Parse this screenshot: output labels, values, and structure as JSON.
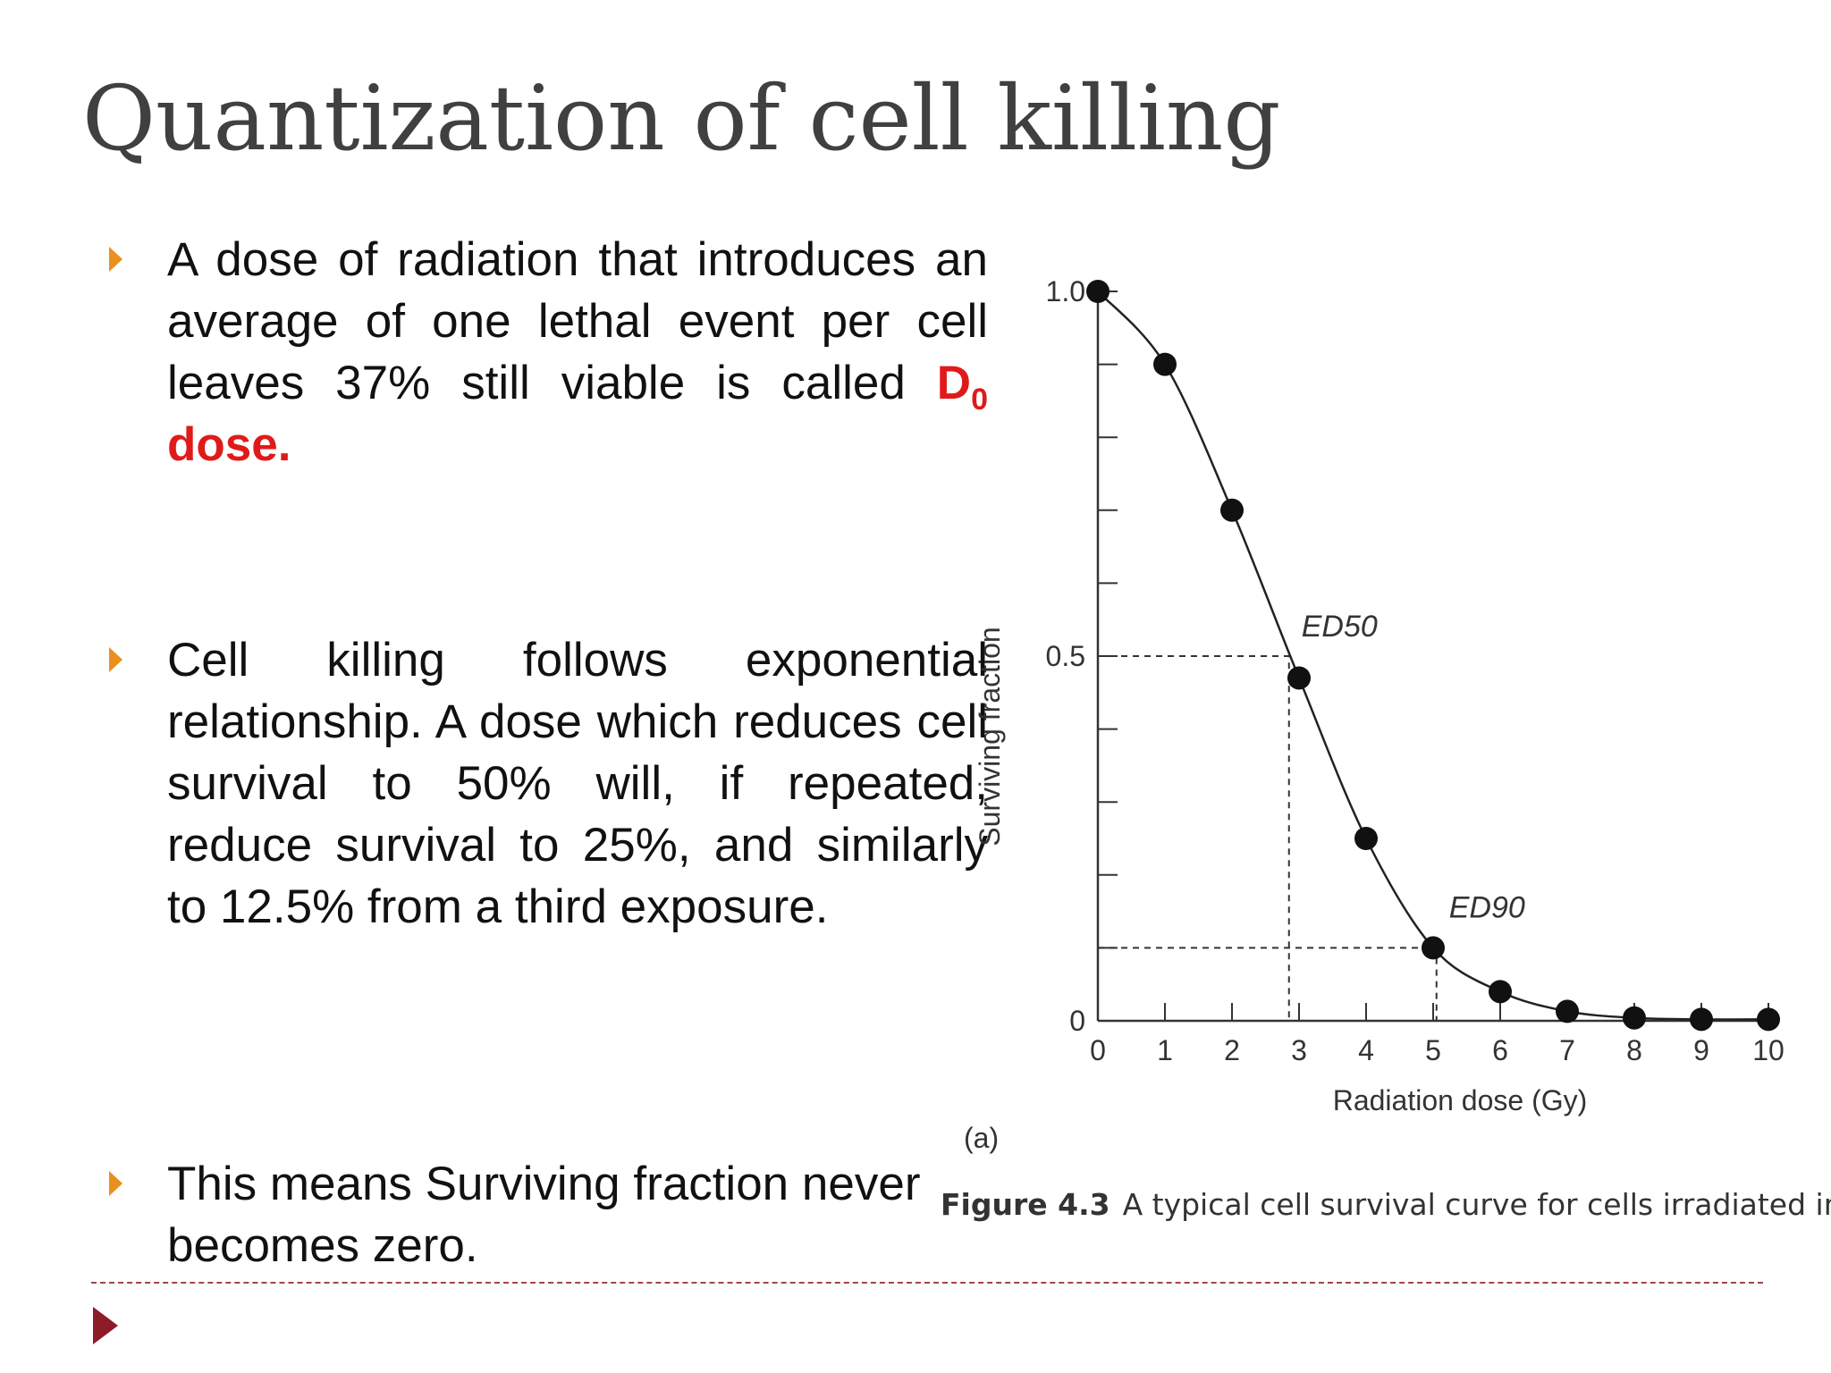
{
  "slide": {
    "title": "Quantization of cell killing",
    "bullets": [
      {
        "text_before": "A dose of radiation that introduces an average of one lethal event per cell leaves 37% still viable is called ",
        "emph_main": "D",
        "emph_sub": "0",
        "emph_after": " dose."
      },
      {
        "text": "Cell killing follows exponential relationship. A dose which reduces cell survival to 50% will, if repeated, reduce survival to 25%, and similarly to 12.5% from a third exposure."
      },
      {
        "text": "This means Surviving fraction never becomes zero."
      }
    ]
  },
  "figure": {
    "panel_label": "(a)",
    "caption_label": "Figure 4.3",
    "caption_text": "A typical cell survival curve for cells irradiated in t"
  },
  "colors": {
    "title": "#404040",
    "bullet_marker": "#e9901f",
    "emphasis": "#e01a1a",
    "footer": "#8c1c28"
  },
  "chart_data": {
    "type": "line",
    "xlabel": "Radiation dose (Gy)",
    "ylabel": "Surviving fraction",
    "xlim": [
      0,
      10
    ],
    "ylim": [
      0,
      1.0
    ],
    "x_ticks": [
      0,
      1,
      2,
      3,
      4,
      5,
      6,
      7,
      8,
      9,
      10
    ],
    "x_tick_labels": [
      "0",
      "1",
      "2",
      "3",
      "4",
      "5",
      "6",
      "7",
      "8",
      "9",
      "10"
    ],
    "y_ticks": [
      0,
      0.1,
      0.2,
      0.3,
      0.4,
      0.5,
      0.6,
      0.7,
      0.8,
      0.9,
      1.0
    ],
    "y_tick_labels": [
      {
        "value": 0,
        "label": "0"
      },
      {
        "value": 0.5,
        "label": "0.5"
      },
      {
        "value": 1.0,
        "label": "1.0"
      }
    ],
    "grid": false,
    "legend": "none",
    "points": [
      {
        "x": 0,
        "y": 1.0
      },
      {
        "x": 1,
        "y": 0.9
      },
      {
        "x": 2,
        "y": 0.7
      },
      {
        "x": 3,
        "y": 0.47
      },
      {
        "x": 4,
        "y": 0.25
      },
      {
        "x": 5,
        "y": 0.1
      },
      {
        "x": 6,
        "y": 0.04
      },
      {
        "x": 7,
        "y": 0.013
      },
      {
        "x": 8,
        "y": 0.004
      },
      {
        "x": 9,
        "y": 0.002
      },
      {
        "x": 10,
        "y": 0.002
      }
    ],
    "reference_lines": [
      {
        "label": "ED50",
        "x": 2.85,
        "y": 0.5
      },
      {
        "label": "ED90",
        "x": 5.05,
        "y": 0.1
      }
    ]
  }
}
